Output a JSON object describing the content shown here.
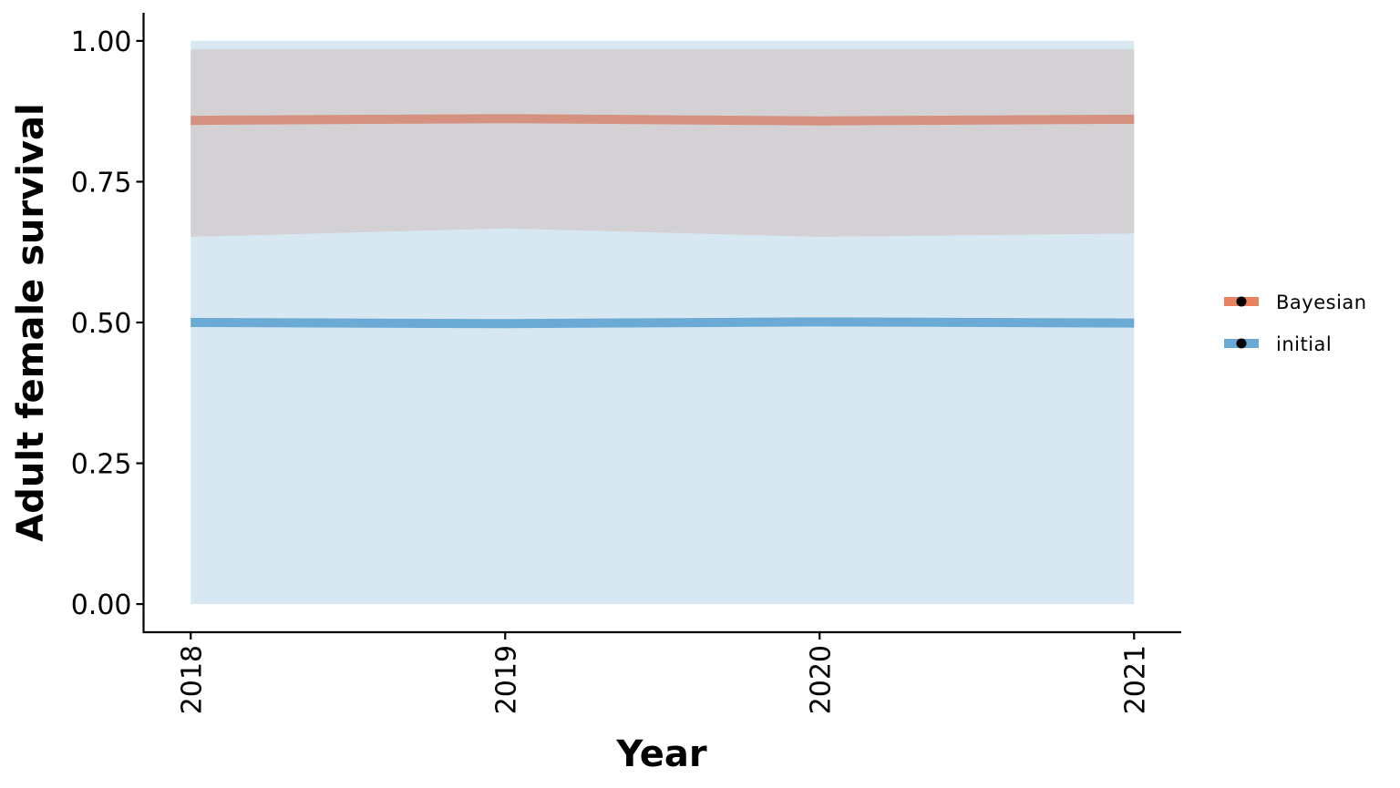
{
  "chart_data": {
    "type": "line",
    "xlabel": "Year",
    "ylabel": "Adult female survival",
    "x": [
      2018,
      2019,
      2020,
      2021
    ],
    "x_ticks": [
      "2018",
      "2019",
      "2020",
      "2021"
    ],
    "xlim": [
      2017.85,
      2021.15
    ],
    "ylim": [
      -0.05,
      1.05
    ],
    "y_ticks": [
      0.0,
      0.25,
      0.5,
      0.75,
      1.0
    ],
    "y_tick_labels": [
      "0.00",
      "0.25",
      "0.50",
      "0.75",
      "1.00"
    ],
    "grid": false,
    "legend_position": "right",
    "series": [
      {
        "name": "Bayesian",
        "color": "#d4917f",
        "legend_color": "#e8825f",
        "band_color": "#d4d1d5",
        "values": [
          0.859,
          0.862,
          0.858,
          0.861
        ],
        "lower": [
          0.652,
          0.667,
          0.652,
          0.658
        ],
        "upper": [
          0.985,
          0.985,
          0.985,
          0.985
        ]
      },
      {
        "name": "initial",
        "color": "#6aaad4",
        "legend_color": "#6aaad4",
        "band_color": "#d8e8f3",
        "values": [
          0.5,
          0.498,
          0.501,
          0.499
        ],
        "lower": [
          0.0,
          0.0,
          0.0,
          0.0
        ],
        "upper": [
          1.0,
          1.0,
          1.0,
          1.0
        ]
      }
    ]
  }
}
